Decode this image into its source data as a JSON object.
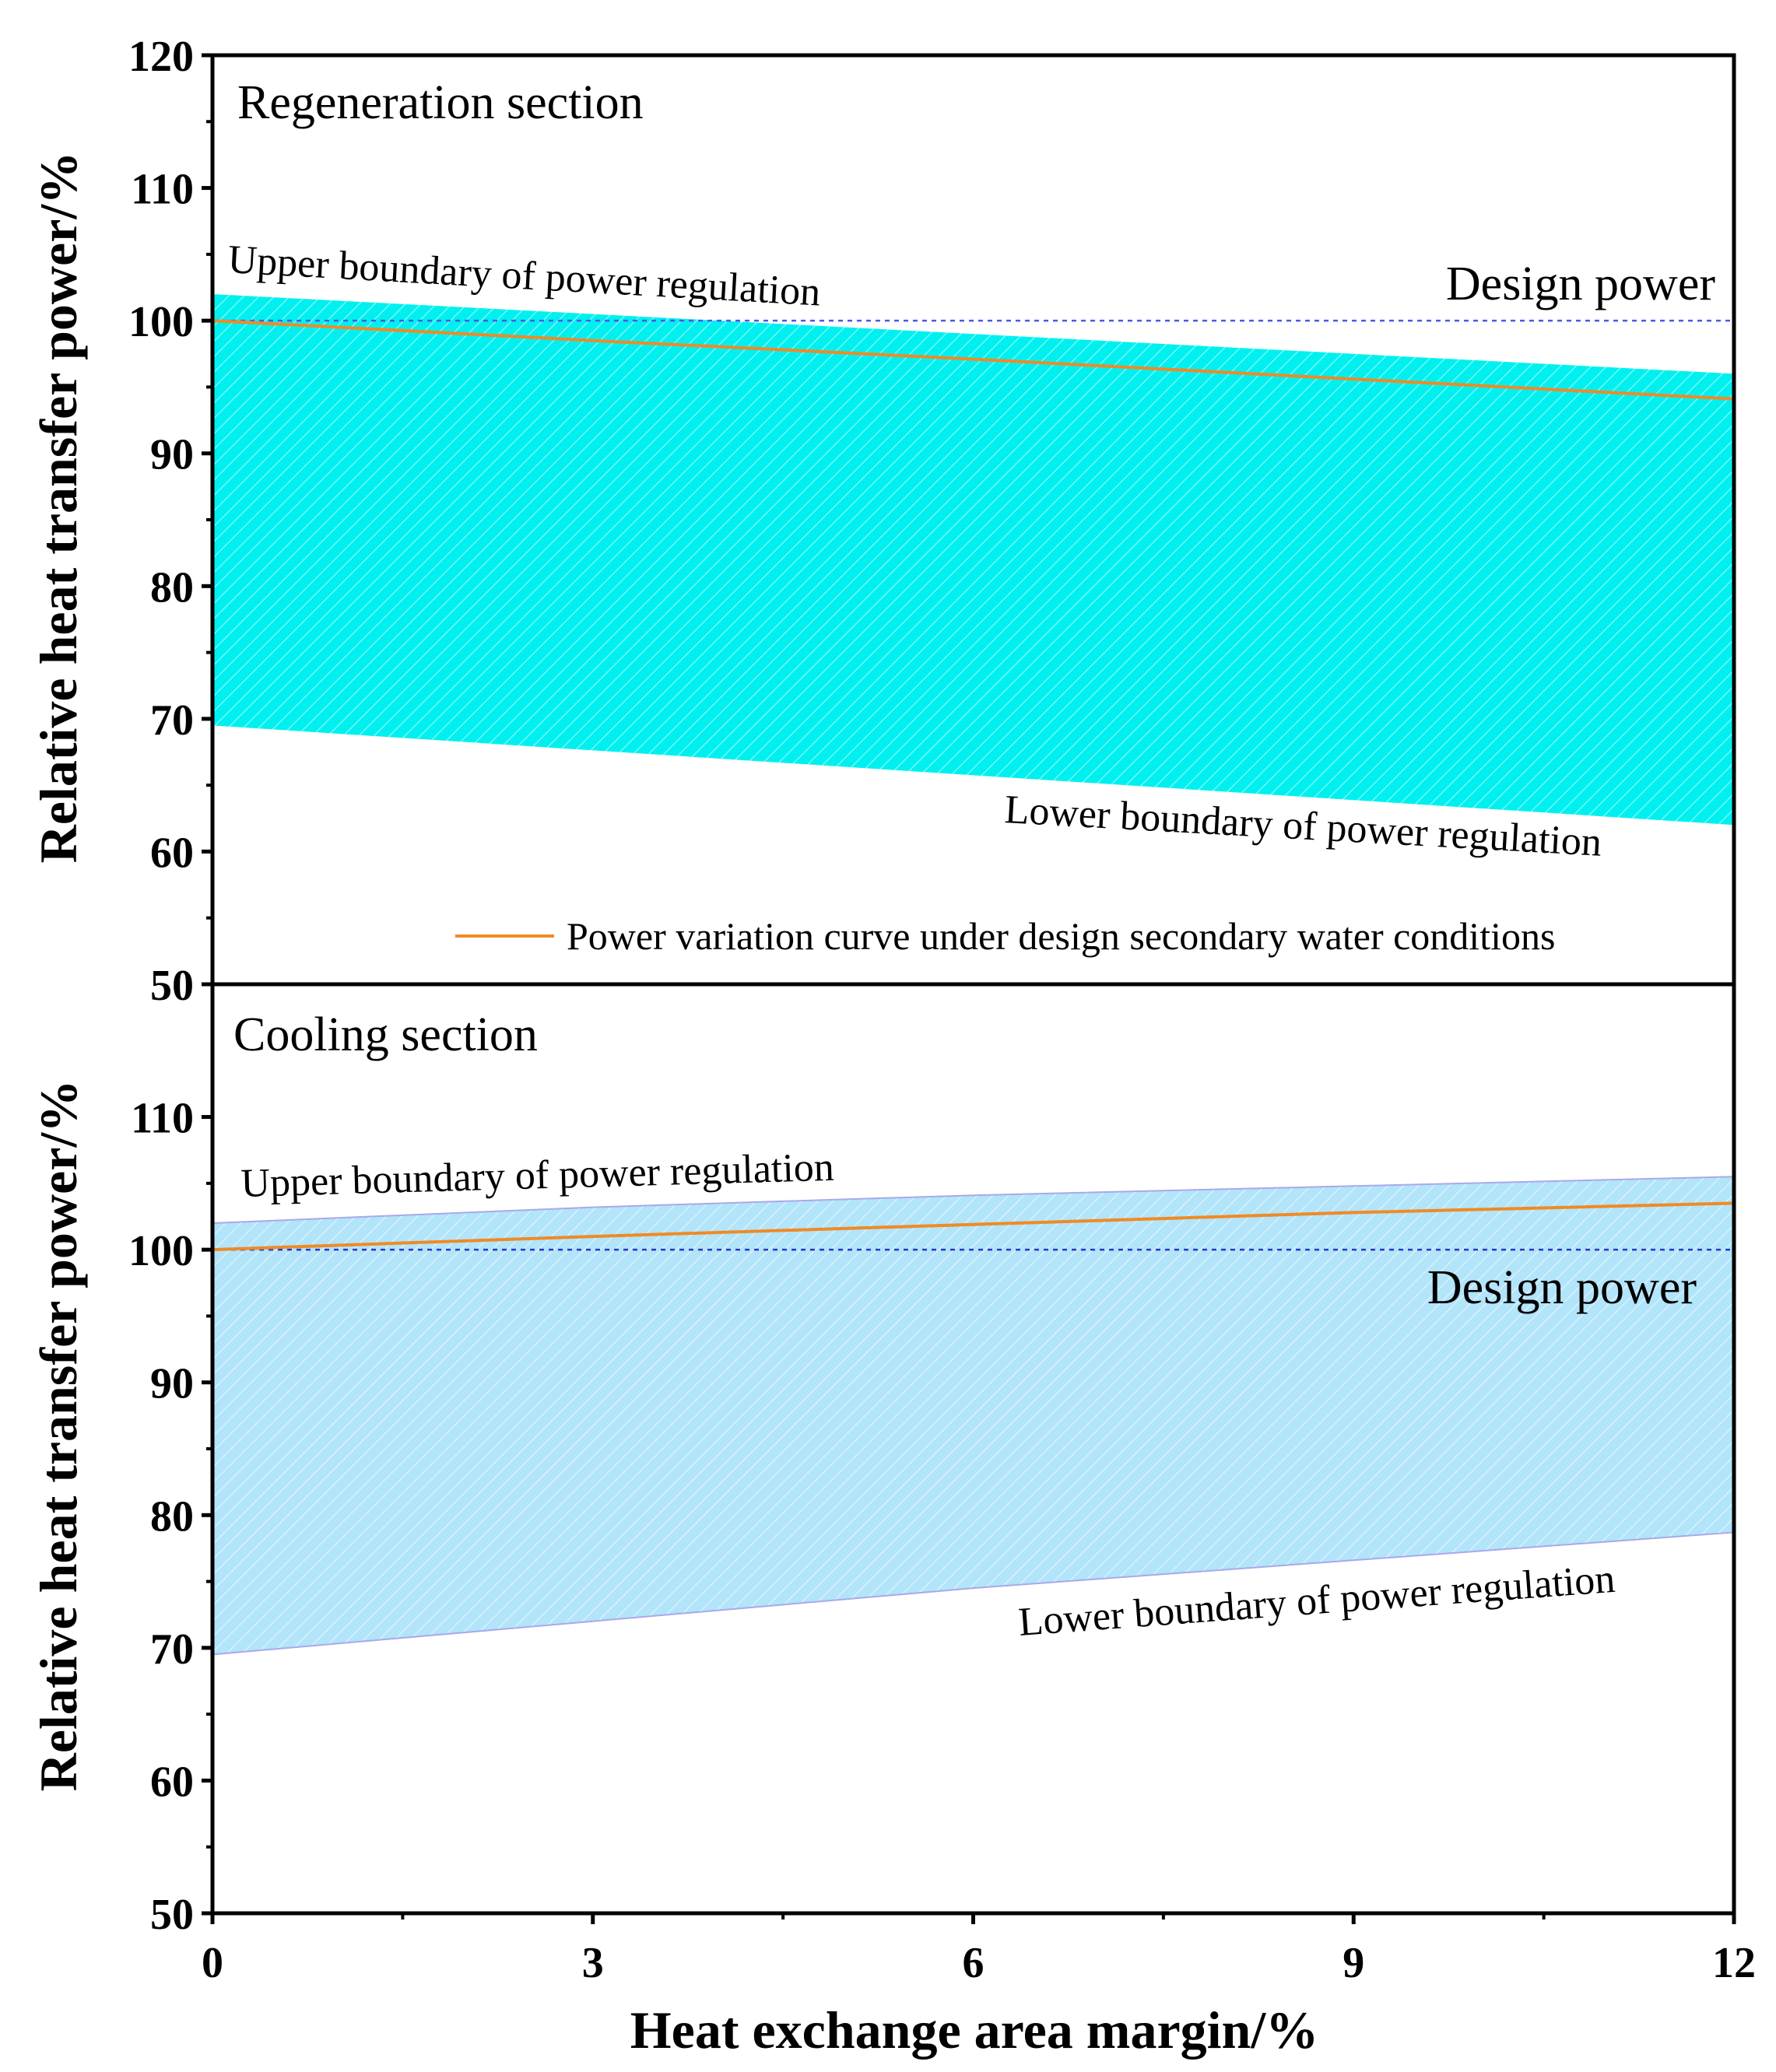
{
  "chart_data": [
    {
      "type": "area",
      "panel": "top",
      "title": "Regeneration section",
      "xlabel": "",
      "ylabel": "Relative heat transfer power/%",
      "xlim": [
        0,
        12
      ],
      "ylim": [
        50,
        120
      ],
      "x_ticks": [
        0,
        3,
        6,
        9,
        12
      ],
      "y_ticks": [
        50,
        60,
        70,
        80,
        90,
        100,
        110,
        120
      ],
      "y_tick_labels": [
        "50",
        "60",
        "70",
        "80",
        "90",
        "100",
        "110",
        "120"
      ],
      "x_tick_labels": [],
      "design_power": 100,
      "design_power_label": "Design power",
      "band_color": "#00f0f0",
      "hatch_color": "#ffffff",
      "band": {
        "x": [
          0,
          12
        ],
        "upper": [
          102,
          96
        ],
        "lower": [
          69.5,
          62
        ]
      },
      "series": [
        {
          "name": "Power variation curve under design secondary water conditions",
          "color": "#f08a24",
          "x": [
            0,
            3,
            6,
            9,
            12
          ],
          "y": [
            100,
            98.5,
            97.1,
            95.6,
            94.1
          ]
        }
      ],
      "annotations": {
        "upper": "Upper boundary of power regulation",
        "lower": "Lower boundary of power regulation"
      },
      "legend": {
        "position": "bottom-right",
        "entries": [
          "Power variation curve under design secondary water conditions"
        ]
      }
    },
    {
      "type": "area",
      "panel": "bottom",
      "title": "Cooling section",
      "xlabel": "Heat exchange area margin/%",
      "ylabel": "Relative heat transfer power/%",
      "xlim": [
        0,
        12
      ],
      "ylim": [
        50,
        120
      ],
      "x_ticks": [
        0,
        3,
        6,
        9,
        12
      ],
      "x_tick_labels": [
        "0",
        "3",
        "6",
        "9",
        "12"
      ],
      "y_ticks": [
        50,
        60,
        70,
        80,
        90,
        100,
        110
      ],
      "y_tick_labels": [
        "50",
        "60",
        "70",
        "80",
        "90",
        "100",
        "110"
      ],
      "design_power": 100,
      "design_power_label": "Design power",
      "band_color": "#b2e4fa",
      "hatch_color": "#ffffff",
      "band": {
        "x": [
          0,
          3,
          6,
          9,
          12
        ],
        "upper": [
          102,
          103.2,
          104.1,
          104.8,
          105.5
        ],
        "lower": [
          69.5,
          72,
          74.5,
          76.6,
          78.7
        ]
      },
      "series": [
        {
          "name": "Power variation curve under design secondary water conditions",
          "color": "#f08a24",
          "x": [
            0,
            3,
            6,
            9,
            12
          ],
          "y": [
            100,
            101,
            101.9,
            102.8,
            103.5
          ]
        }
      ],
      "annotations": {
        "upper": "Upper boundary of power regulation",
        "lower": "Lower boundary of power regulation"
      }
    }
  ]
}
